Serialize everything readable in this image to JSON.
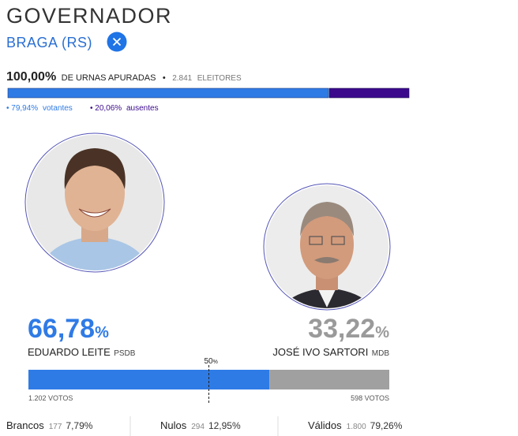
{
  "header": {
    "title": "GOVERNADOR",
    "location": "BRAGA (RS)"
  },
  "apuracao": {
    "percent": "100,00%",
    "label": "DE URNAS APURADAS",
    "voters": "2.841",
    "voters_label": "ELEITORES",
    "votantes": {
      "value": 79.94,
      "label": "79,94%",
      "name": "votantes"
    },
    "ausentes": {
      "value": 20.06,
      "label": "20,06%",
      "name": "ausentes"
    }
  },
  "candidates": [
    {
      "percent": {
        "value": 66.78,
        "label": "66,78"
      },
      "unit": "%",
      "name": "EDUARDO LEITE",
      "party": "PSDB",
      "votes": "1.202 VOTOS",
      "color": "#2f7be6"
    },
    {
      "percent": {
        "value": 33.22,
        "label": "33,22"
      },
      "unit": "%",
      "name": "JOSÉ IVO SARTORI",
      "party": "MDB",
      "votes": "598 VOTOS",
      "color": "#a0a0a0"
    }
  ],
  "midpoint": {
    "value": 50,
    "unit": "%"
  },
  "summary": [
    {
      "label": "Brancos",
      "count": "177",
      "percent": "7,79%"
    },
    {
      "label": "Nulos",
      "count": "294",
      "percent": "12,95%"
    },
    {
      "label": "Válidos",
      "count": "1.800",
      "percent": "79,26%"
    }
  ]
}
